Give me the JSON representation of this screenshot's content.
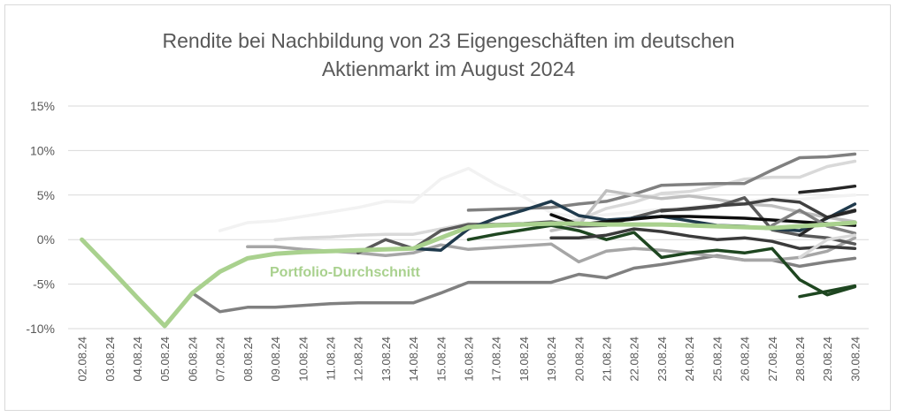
{
  "chart_data": {
    "type": "line",
    "title": [
      "Rendite bei Nachbildung von 23 Eigengeschäften im deutschen",
      "Aktienmarkt im August 2024"
    ],
    "categories": [
      "02.08.24",
      "03.08.24",
      "04.08.24",
      "05.08.24",
      "06.08.24",
      "07.08.24",
      "08.08.24",
      "09.08.24",
      "10.08.24",
      "11.08.24",
      "12.08.24",
      "13.08.24",
      "14.08.24",
      "15.08.24",
      "16.08.24",
      "17.08.24",
      "18.08.24",
      "19.08.24",
      "20.08.24",
      "21.08.24",
      "22.08.24",
      "23.08.24",
      "24.08.24",
      "25.08.24",
      "26.08.24",
      "27.08.24",
      "28.08.24",
      "29.08.24",
      "30.08.24"
    ],
    "y_ticks": [
      "15%",
      "10%",
      "5%",
      "0%",
      "-5%",
      "-10%"
    ],
    "ylim": [
      -10,
      15
    ],
    "grid": true,
    "annotation": "Portfolio-Durchschnitt",
    "series": [
      {
        "color": "#f2f2f2",
        "values": [
          null,
          null,
          null,
          null,
          null,
          1.0,
          1.9,
          2.1,
          2.6,
          3.1,
          3.6,
          4.3,
          4.2,
          6.8,
          8.0,
          6.2,
          4.8,
          3.0,
          2.5,
          2.8,
          3.1,
          3.4,
          3.6,
          4.0,
          4.3,
          4.6,
          4.5,
          4.8,
          5.0
        ]
      },
      {
        "color": "#d9d9d9",
        "values": [
          null,
          null,
          null,
          null,
          null,
          null,
          null,
          0.0,
          0.2,
          0.3,
          0.5,
          0.6,
          0.6,
          1.2,
          1.8,
          1.7,
          1.7,
          1.9,
          2.2,
          3.5,
          4.2,
          5.2,
          5.4,
          6.0,
          6.8,
          7.0,
          7.0,
          8.2,
          8.8
        ]
      },
      {
        "color": "#808080",
        "values": [
          null,
          null,
          null,
          null,
          null,
          null,
          null,
          null,
          null,
          null,
          null,
          null,
          null,
          null,
          3.3,
          3.4,
          3.5,
          3.6,
          4.0,
          4.3,
          5.1,
          6.1,
          6.2,
          6.3,
          6.3,
          7.8,
          9.2,
          9.3,
          9.6
        ]
      },
      {
        "color": "#808080",
        "values": [
          null,
          null,
          null,
          null,
          -6.0,
          -8.1,
          -7.6,
          -7.6,
          -7.4,
          -7.2,
          -7.1,
          -7.1,
          -7.1,
          -6.0,
          -4.8,
          -4.8,
          -4.8,
          -4.8,
          -3.9,
          -4.3,
          -3.2,
          -2.8,
          -2.3,
          -1.8,
          -2.3,
          -2.3,
          -3.0,
          -2.5,
          -2.1
        ]
      },
      {
        "color": "#a6a6a6",
        "values": [
          null,
          null,
          null,
          null,
          null,
          null,
          -0.8,
          -0.8,
          -1.1,
          -1.3,
          -1.5,
          -1.8,
          -1.5,
          -0.6,
          -1.1,
          -0.9,
          -0.7,
          -0.5,
          -2.5,
          -1.3,
          -1.0,
          -1.2,
          -1.5,
          -1.9,
          -2.3,
          -2.3,
          -2.0,
          -1.3,
          0.2
        ]
      },
      {
        "color": "#bfbfbf",
        "values": [
          null,
          null,
          null,
          null,
          null,
          null,
          null,
          null,
          null,
          null,
          null,
          null,
          null,
          null,
          null,
          null,
          null,
          1.0,
          1.6,
          5.5,
          5.0,
          4.6,
          4.9,
          4.5,
          4.0,
          3.8,
          3.1,
          2.5,
          2.0
        ]
      },
      {
        "color": "#595959",
        "values": [
          null,
          null,
          null,
          null,
          null,
          null,
          null,
          null,
          null,
          null,
          -1.5,
          0.0,
          -1.0,
          1.0,
          1.7,
          1.7,
          1.8,
          2.0,
          1.5,
          1.6,
          2.5,
          3.3,
          3.4,
          3.7,
          4.7,
          1.1,
          0.5,
          0.2,
          -0.5
        ]
      },
      {
        "color": "#404040",
        "values": [
          null,
          null,
          null,
          null,
          null,
          null,
          null,
          null,
          null,
          null,
          null,
          null,
          null,
          null,
          null,
          null,
          null,
          null,
          null,
          null,
          null,
          3.2,
          3.5,
          3.8,
          4.0,
          4.5,
          4.2,
          2.5,
          3.2
        ]
      },
      {
        "color": "#262626",
        "values": [
          null,
          null,
          null,
          null,
          null,
          null,
          null,
          null,
          null,
          null,
          null,
          null,
          null,
          null,
          null,
          null,
          null,
          null,
          null,
          null,
          null,
          null,
          null,
          null,
          null,
          null,
          5.3,
          5.6,
          6.0
        ]
      },
      {
        "color": "#1f3a4c",
        "values": [
          null,
          null,
          null,
          null,
          null,
          null,
          null,
          null,
          null,
          null,
          null,
          null,
          -1.0,
          -1.2,
          1.2,
          2.4,
          3.3,
          4.3,
          2.7,
          2.2,
          2.4,
          2.6,
          2.1,
          1.6,
          1.5,
          1.2,
          1.0,
          2.4,
          4.0
        ]
      },
      {
        "color": "#0d0d0d",
        "values": [
          null,
          null,
          null,
          null,
          null,
          null,
          null,
          null,
          null,
          null,
          null,
          null,
          null,
          null,
          null,
          null,
          null,
          2.8,
          1.7,
          2.0,
          2.3,
          2.6,
          2.6,
          2.5,
          2.4,
          2.2,
          2.0,
          1.8,
          1.6
        ]
      },
      {
        "color": "#1e4620",
        "values": [
          null,
          null,
          null,
          null,
          null,
          null,
          null,
          null,
          null,
          null,
          null,
          null,
          null,
          null,
          0.0,
          0.6,
          1.1,
          1.6,
          1.0,
          0.0,
          0.8,
          -2.0,
          -1.5,
          -1.2,
          -1.5,
          -1.0,
          -4.5,
          -6.2,
          -5.3
        ]
      },
      {
        "color": "#1e4620",
        "values": [
          null,
          null,
          null,
          null,
          null,
          null,
          null,
          null,
          null,
          null,
          null,
          null,
          null,
          null,
          null,
          null,
          null,
          null,
          null,
          null,
          null,
          null,
          null,
          null,
          null,
          null,
          -6.4,
          -5.8,
          -5.2
        ]
      },
      {
        "color": "#3a3a3a",
        "values": [
          null,
          null,
          null,
          null,
          null,
          null,
          null,
          null,
          null,
          null,
          null,
          null,
          null,
          null,
          null,
          null,
          null,
          0.2,
          0.2,
          0.5,
          1.2,
          0.9,
          0.4,
          0.0,
          0.2,
          -0.2,
          -1.0,
          -0.8,
          -1.0
        ]
      },
      {
        "color": "#262626",
        "values": [
          null,
          null,
          null,
          null,
          null,
          null,
          null,
          null,
          null,
          null,
          null,
          null,
          null,
          null,
          null,
          null,
          null,
          null,
          null,
          null,
          null,
          null,
          null,
          null,
          null,
          null,
          0.5,
          2.5,
          3.3
        ]
      },
      {
        "color": "#808080",
        "values": [
          null,
          null,
          null,
          null,
          null,
          null,
          null,
          null,
          null,
          null,
          null,
          null,
          null,
          null,
          null,
          null,
          null,
          null,
          null,
          null,
          null,
          null,
          null,
          null,
          null,
          1.6,
          3.3,
          1.5,
          0.7
        ]
      },
      {
        "color": "#d9d9d9",
        "values": [
          null,
          null,
          null,
          null,
          null,
          null,
          null,
          null,
          null,
          null,
          null,
          null,
          null,
          null,
          null,
          null,
          null,
          null,
          null,
          null,
          null,
          null,
          null,
          null,
          null,
          null,
          -2.0,
          0.0,
          0.5
        ]
      },
      {
        "color": "#a9d18e",
        "average": true,
        "values": [
          0.0,
          -3.2,
          -6.5,
          -9.7,
          -6.0,
          -3.6,
          -2.1,
          -1.6,
          -1.4,
          -1.3,
          -1.2,
          -1.1,
          -1.0,
          0.2,
          1.4,
          1.6,
          1.7,
          1.8,
          1.8,
          1.7,
          1.7,
          1.7,
          1.6,
          1.5,
          1.4,
          1.3,
          1.5,
          1.7,
          1.9
        ]
      }
    ]
  }
}
